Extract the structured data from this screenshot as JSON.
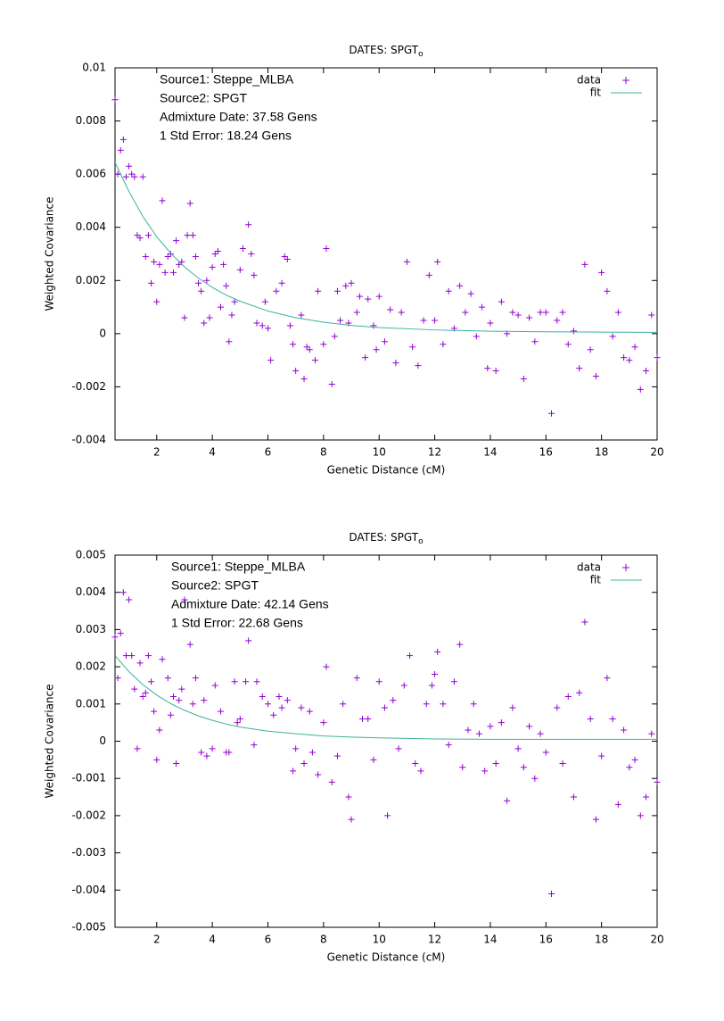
{
  "chart_data": [
    {
      "type": "scatter",
      "title": "DATES: SPGT",
      "title_subscript": "o",
      "annotations": [
        "Source1: Steppe_MLBA",
        "Source2: SPGT",
        "Admixture Date: 37.58 Gens",
        "1 Std Error: 18.24 Gens"
      ],
      "xlabel": "Genetic Distance (cM)",
      "ylabel": "Weighted Covariance",
      "xlim": [
        0.5,
        20
      ],
      "ylim": [
        -0.004,
        0.01
      ],
      "xticks": [
        2,
        4,
        6,
        8,
        10,
        12,
        14,
        16,
        18,
        20
      ],
      "yticks": [
        -0.004,
        -0.002,
        0,
        0.002,
        0.004,
        0.006,
        0.008,
        0.01
      ],
      "legend": "top-right",
      "series": [
        {
          "name": "data",
          "mode": "markers",
          "color": "#9400d3",
          "x": [
            0.5,
            0.6,
            0.7,
            0.8,
            0.9,
            1.0,
            1.1,
            1.2,
            1.3,
            1.4,
            1.5,
            1.6,
            1.7,
            1.8,
            1.9,
            2.0,
            2.1,
            2.2,
            2.3,
            2.4,
            2.5,
            2.6,
            2.7,
            2.8,
            2.9,
            3.0,
            3.1,
            3.2,
            3.3,
            3.4,
            3.5,
            3.6,
            3.7,
            3.8,
            3.9,
            4.0,
            4.1,
            4.2,
            4.3,
            4.4,
            4.5,
            4.6,
            4.7,
            4.8,
            5.0,
            5.1,
            5.3,
            5.4,
            5.5,
            5.6,
            5.8,
            5.9,
            6.0,
            6.1,
            6.3,
            6.5,
            6.6,
            6.7,
            6.8,
            6.9,
            7.0,
            7.2,
            7.3,
            7.4,
            7.5,
            7.7,
            7.8,
            8.0,
            8.1,
            8.3,
            8.4,
            8.5,
            8.6,
            8.8,
            8.9,
            9.0,
            9.2,
            9.3,
            9.5,
            9.6,
            9.8,
            9.9,
            10.0,
            10.2,
            10.4,
            10.6,
            10.8,
            11.0,
            11.2,
            11.4,
            11.6,
            11.8,
            12.0,
            12.1,
            12.3,
            12.5,
            12.7,
            12.9,
            13.1,
            13.3,
            13.5,
            13.7,
            13.9,
            14.0,
            14.2,
            14.4,
            14.6,
            14.8,
            15.0,
            15.2,
            15.4,
            15.6,
            15.8,
            16.0,
            16.2,
            16.4,
            16.6,
            16.8,
            17.0,
            17.2,
            17.4,
            17.6,
            17.8,
            18.0,
            18.2,
            18.4,
            18.6,
            18.8,
            19.0,
            19.2,
            19.4,
            19.6,
            19.8,
            20.0
          ],
          "values": [
            0.0088,
            0.006,
            0.0069,
            0.0073,
            0.0059,
            0.0063,
            0.006,
            0.0059,
            0.0037,
            0.0036,
            0.0059,
            0.0029,
            0.0037,
            0.0019,
            0.0027,
            0.0012,
            0.0026,
            0.005,
            0.0023,
            0.0029,
            0.003,
            0.0023,
            0.0035,
            0.0026,
            0.0027,
            0.0006,
            0.0037,
            0.0049,
            0.0037,
            0.0029,
            0.0019,
            0.0016,
            0.0004,
            0.002,
            0.0006,
            0.0025,
            0.003,
            0.0031,
            0.001,
            0.0026,
            0.0018,
            -0.0003,
            0.0007,
            0.0012,
            0.0024,
            0.0032,
            0.0041,
            0.003,
            0.0022,
            0.0004,
            0.0003,
            0.0012,
            0.0002,
            -0.001,
            0.0016,
            0.0019,
            0.0029,
            0.0028,
            0.0003,
            -0.0004,
            -0.0014,
            0.0007,
            -0.0017,
            -0.0005,
            -0.0006,
            -0.001,
            0.0016,
            -0.0004,
            0.0032,
            -0.0019,
            -0.0001,
            0.0016,
            0.0005,
            0.0018,
            0.0004,
            0.0019,
            0.0008,
            0.0014,
            -0.0009,
            0.0013,
            0.0003,
            -0.0006,
            0.0014,
            -0.0003,
            0.0009,
            -0.0011,
            0.0008,
            0.0027,
            -0.0005,
            -0.0012,
            0.0005,
            0.0022,
            0.0005,
            0.0027,
            -0.0004,
            0.0016,
            0.0002,
            0.0018,
            0.0008,
            0.0015,
            -0.0001,
            0.001,
            -0.0013,
            0.0004,
            -0.0014,
            0.0012,
            0,
            0.0008,
            0.0007,
            -0.0017,
            0.0006,
            -0.0003,
            0.0008,
            0.0008,
            -0.003,
            0.0005,
            0.0008,
            -0.0004,
            0.0001,
            -0.0013,
            0.0026,
            -0.0006,
            -0.0016,
            0.0023,
            0.0016,
            -0.0001,
            0.0008,
            -0.0009,
            -0.001,
            -0.0005,
            -0.0021,
            -0.0014,
            0.0007,
            -0.0009
          ]
        },
        {
          "name": "fit",
          "mode": "line",
          "color": "#3cb39b",
          "x": [
            0.5,
            1,
            1.5,
            2,
            2.5,
            3,
            3.5,
            4,
            4.5,
            5,
            6,
            7,
            8,
            9,
            10,
            12,
            14,
            16,
            18,
            20
          ],
          "values": [
            0.00644,
            0.00535,
            0.00441,
            0.00365,
            0.00303,
            0.00251,
            0.00209,
            0.00174,
            0.00145,
            0.00122,
            0.00085,
            0.0006,
            0.00043,
            0.00031,
            0.00023,
            0.00014,
            9e-05,
            7e-05,
            6e-05,
            5e-05
          ]
        }
      ]
    },
    {
      "type": "scatter",
      "title": "DATES: SPGT",
      "title_subscript": "o",
      "annotations": [
        "Source1: Steppe_MLBA",
        "Source2: SPGT",
        "Admixture Date: 42.14 Gens",
        "1 Std Error: 22.68 Gens"
      ],
      "xlabel": "Genetic Distance (cM)",
      "ylabel": "Weighted Covariance",
      "xlim": [
        0.5,
        20
      ],
      "ylim": [
        -0.005,
        0.005
      ],
      "xticks": [
        2,
        4,
        6,
        8,
        10,
        12,
        14,
        16,
        18,
        20
      ],
      "yticks": [
        -0.005,
        -0.004,
        -0.003,
        -0.002,
        -0.001,
        0,
        0.001,
        0.002,
        0.003,
        0.004,
        0.005
      ],
      "legend": "top-right",
      "series": [
        {
          "name": "data",
          "mode": "markers",
          "color": "#9400d3",
          "x": [
            0.5,
            0.6,
            0.7,
            0.8,
            0.9,
            1.0,
            1.1,
            1.2,
            1.3,
            1.4,
            1.5,
            1.6,
            1.7,
            1.8,
            1.9,
            2.0,
            2.1,
            2.2,
            2.4,
            2.5,
            2.6,
            2.7,
            2.8,
            2.9,
            3.0,
            3.2,
            3.3,
            3.4,
            3.6,
            3.7,
            3.8,
            4.0,
            4.1,
            4.3,
            4.5,
            4.6,
            4.8,
            4.9,
            5.0,
            5.2,
            5.3,
            5.5,
            5.6,
            5.8,
            6.0,
            6.2,
            6.4,
            6.5,
            6.7,
            6.9,
            7.0,
            7.2,
            7.3,
            7.5,
            7.6,
            7.8,
            8.0,
            8.1,
            8.3,
            8.5,
            8.7,
            8.9,
            9.0,
            9.2,
            9.4,
            9.6,
            9.8,
            10.0,
            10.2,
            10.3,
            10.5,
            10.7,
            10.9,
            11.1,
            11.3,
            11.5,
            11.7,
            11.9,
            12.0,
            12.1,
            12.3,
            12.5,
            12.7,
            12.9,
            13.0,
            13.2,
            13.4,
            13.6,
            13.8,
            14.0,
            14.2,
            14.4,
            14.6,
            14.8,
            15.0,
            15.2,
            15.4,
            15.6,
            15.8,
            16.0,
            16.2,
            16.4,
            16.6,
            16.8,
            17.0,
            17.2,
            17.4,
            17.6,
            17.8,
            18.0,
            18.2,
            18.4,
            18.6,
            18.8,
            19.0,
            19.2,
            19.4,
            19.6,
            19.8,
            20.0
          ],
          "values": [
            0.0028,
            0.0017,
            0.0029,
            0.004,
            0.0023,
            0.0038,
            0.0023,
            0.0014,
            -0.0002,
            0.0021,
            0.0012,
            0.0013,
            0.0023,
            0.0016,
            0.0008,
            -0.0005,
            0.0003,
            0.0022,
            0.0017,
            0.0007,
            0.0012,
            -0.0006,
            0.0011,
            0.0014,
            0.0038,
            0.0026,
            0.001,
            0.0017,
            -0.0003,
            0.0011,
            -0.0004,
            -0.0002,
            0.0015,
            0.0008,
            -0.0003,
            -0.0003,
            0.0016,
            0.0005,
            0.0006,
            0.0016,
            0.0027,
            -0.0001,
            0.0016,
            0.0012,
            0.001,
            0.0007,
            0.0012,
            0.0009,
            0.0011,
            -0.0008,
            -0.0002,
            0.0009,
            -0.0006,
            0.0008,
            -0.0003,
            -0.0009,
            0.0005,
            0.002,
            -0.0011,
            -0.0004,
            0.001,
            -0.0015,
            -0.0021,
            0.0017,
            0.0006,
            0.0006,
            -0.0005,
            0.0016,
            0.0009,
            -0.002,
            0.0011,
            -0.0002,
            0.0015,
            0.0023,
            -0.0006,
            -0.0008,
            0.001,
            0.0015,
            0.0018,
            0.0024,
            0.001,
            -0.0001,
            0.0016,
            0.0026,
            -0.0007,
            0.0003,
            0.001,
            0.0002,
            -0.0008,
            0.0004,
            -0.0006,
            0.0005,
            -0.0016,
            0.0009,
            -0.0002,
            -0.0007,
            0.0004,
            -0.001,
            0.0002,
            -0.0003,
            -0.0041,
            0.0009,
            -0.0006,
            0.0012,
            -0.0015,
            0.0013,
            0.0032,
            0.0006,
            -0.0021,
            -0.0004,
            0.0017,
            0.0006,
            -0.0017,
            0.0003,
            -0.0007,
            -0.0005,
            -0.002,
            -0.0015,
            0.0002,
            -0.0011
          ]
        },
        {
          "name": "fit",
          "mode": "line",
          "color": "#3cb39b",
          "x": [
            0.5,
            1,
            1.5,
            2,
            2.5,
            3,
            3.5,
            4,
            4.5,
            5,
            6,
            7,
            8,
            9,
            10,
            12,
            14,
            16,
            18,
            20
          ],
          "values": [
            0.0023,
            0.00187,
            0.00152,
            0.00124,
            0.00101,
            0.00083,
            0.00068,
            0.00056,
            0.00046,
            0.00038,
            0.00027,
            0.0002,
            0.00014,
            0.00011,
            9e-05,
            6e-05,
            5e-05,
            5e-05,
            5e-05,
            5e-05
          ]
        }
      ]
    }
  ]
}
